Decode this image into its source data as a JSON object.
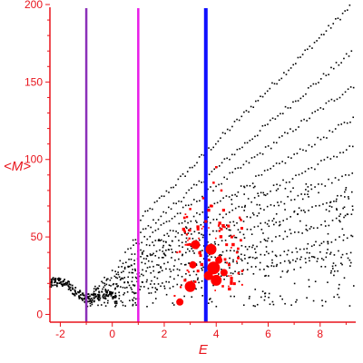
{
  "colors": {
    "axis": "#e8141c",
    "background": "#ffffff",
    "dots": "#000000",
    "highlight": "#ff0000",
    "line_purple": "#8b30b8",
    "line_magenta": "#e81ce8",
    "line_blue": "#1010ff"
  },
  "chart_data": {
    "type": "scatter",
    "title": "",
    "xlabel": "E",
    "ylabel": "<M>",
    "xlim": [
      -2.4,
      9.3
    ],
    "ylim": [
      -5,
      200
    ],
    "xticks": [
      -2,
      0,
      2,
      4,
      6,
      8
    ],
    "yticks": [
      0,
      50,
      100,
      150,
      200
    ],
    "grid": false,
    "vertical_lines": [
      {
        "x": -1.0,
        "color": "#8b30b8"
      },
      {
        "x": 1.0,
        "color": "#e81ce8"
      },
      {
        "x": 3.6,
        "color": "#1010ff"
      }
    ],
    "curve_families": {
      "fan": [
        {
          "x0": 1.0,
          "y0": 60,
          "slope": 17.0
        },
        {
          "x0": 0.8,
          "y0": 48,
          "slope": 14.4
        },
        {
          "x0": 0.5,
          "y0": 40,
          "slope": 12.3
        },
        {
          "x0": 0.3,
          "y0": 33,
          "slope": 10.4
        },
        {
          "x0": 0.0,
          "y0": 27,
          "slope": 8.8
        },
        {
          "x0": -0.3,
          "y0": 22,
          "slope": 7.4
        },
        {
          "x0": -0.5,
          "y0": 18,
          "slope": 6.2
        },
        {
          "x0": -0.7,
          "y0": 14,
          "slope": 5.0
        },
        {
          "x0": -0.8,
          "y0": 11,
          "slope": 4.0
        },
        {
          "x0": -1.0,
          "y0": 9,
          "slope": 3.2
        }
      ],
      "tail": {
        "x_start": -2.4,
        "x_end": 0.2,
        "y_start": 20,
        "y_end": 8
      }
    },
    "highlight_points": [
      {
        "x": 2.6,
        "y": 8,
        "size": 4
      },
      {
        "x": 2.8,
        "y": 22,
        "size": 3
      },
      {
        "x": 3.0,
        "y": 18,
        "size": 6
      },
      {
        "x": 3.1,
        "y": 32,
        "size": 4
      },
      {
        "x": 3.2,
        "y": 45,
        "size": 5
      },
      {
        "x": 3.3,
        "y": 28,
        "size": 3
      },
      {
        "x": 3.4,
        "y": 38,
        "size": 3
      },
      {
        "x": 3.7,
        "y": 25,
        "size": 5
      },
      {
        "x": 3.8,
        "y": 42,
        "size": 6
      },
      {
        "x": 3.9,
        "y": 30,
        "size": 7
      },
      {
        "x": 4.0,
        "y": 22,
        "size": 6
      },
      {
        "x": 4.1,
        "y": 35,
        "size": 4
      },
      {
        "x": 4.2,
        "y": 55,
        "size": 3
      },
      {
        "x": 4.3,
        "y": 27,
        "size": 4
      },
      {
        "x": 4.4,
        "y": 45,
        "size": 3
      },
      {
        "x": 4.5,
        "y": 32,
        "size": 3
      },
      {
        "x": 4.6,
        "y": 50,
        "size": 3
      },
      {
        "x": 3.6,
        "y": 60,
        "size": 3
      },
      {
        "x": 3.8,
        "y": 70,
        "size": 3
      },
      {
        "x": 3.9,
        "y": 85,
        "size": 2.5
      },
      {
        "x": 4.0,
        "y": 95,
        "size": 2.5
      },
      {
        "x": 3.5,
        "y": 75,
        "size": 2.5
      },
      {
        "x": 4.2,
        "y": 80,
        "size": 2.5
      },
      {
        "x": 3.3,
        "y": 55,
        "size": 3
      },
      {
        "x": 2.9,
        "y": 45,
        "size": 2.5
      },
      {
        "x": 3.0,
        "y": 68,
        "size": 2.5
      },
      {
        "x": 4.8,
        "y": 40,
        "size": 2.5
      },
      {
        "x": 5.0,
        "y": 28,
        "size": 2.5
      },
      {
        "x": 2.5,
        "y": 40,
        "size": 2
      },
      {
        "x": 2.4,
        "y": 12,
        "size": 2
      }
    ]
  }
}
